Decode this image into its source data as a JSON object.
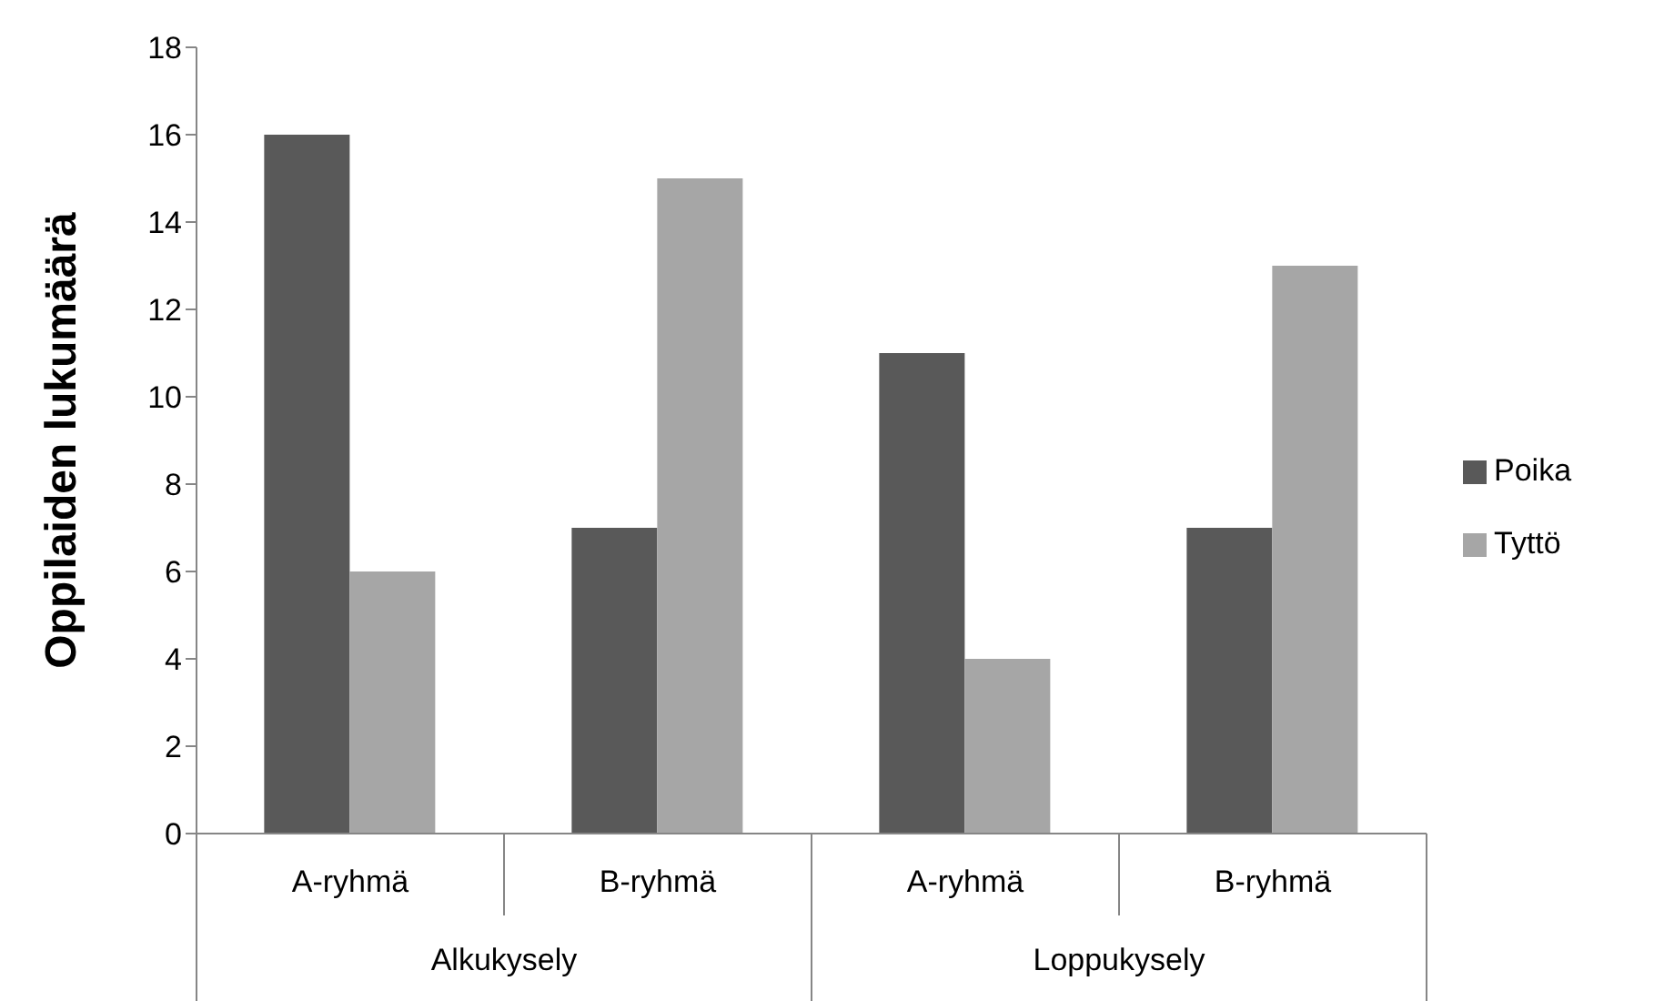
{
  "chart_data": {
    "type": "bar",
    "ylabel": "Oppilaiden lukumäärä",
    "categories": [
      "A-ryhmä",
      "B-ryhmä",
      "A-ryhmä",
      "B-ryhmä"
    ],
    "series": [
      {
        "name": "Poika",
        "color": "#595959",
        "values": [
          16,
          7,
          11,
          7
        ]
      },
      {
        "name": "Tyttö",
        "color": "#a6a6a6",
        "values": [
          6,
          15,
          4,
          13
        ]
      }
    ],
    "annotations": [
      "Alkukysely",
      "Loppukysely"
    ],
    "ylim": [
      0,
      18
    ],
    "yticks": [
      0,
      2,
      4,
      6,
      8,
      10,
      12,
      14,
      16,
      18
    ],
    "grid": false,
    "legend": "right"
  }
}
